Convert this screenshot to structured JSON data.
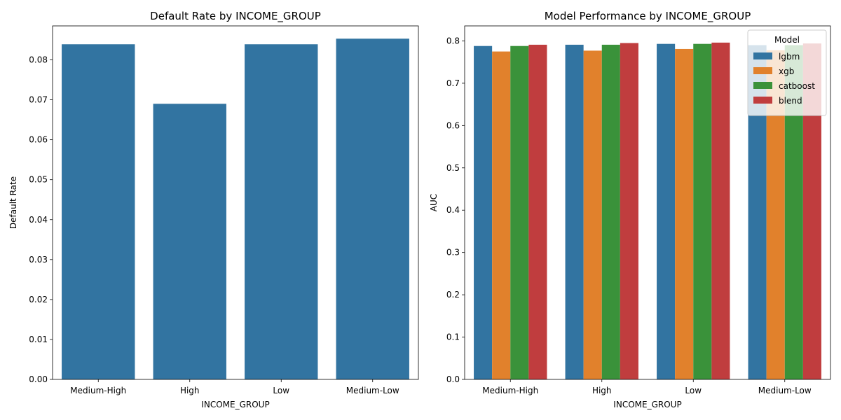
{
  "chart_data": [
    {
      "type": "bar",
      "title": "Default Rate by INCOME_GROUP",
      "xlabel": "INCOME_GROUP",
      "ylabel": "Default Rate",
      "categories": [
        "Medium-High",
        "High",
        "Low",
        "Medium-Low"
      ],
      "values": [
        0.0839,
        0.069,
        0.0839,
        0.0853
      ],
      "ylim": [
        0,
        0.0885
      ],
      "yticks": [
        "0.00",
        "0.01",
        "0.02",
        "0.03",
        "0.04",
        "0.05",
        "0.06",
        "0.07",
        "0.08"
      ],
      "color": "#3274a1",
      "grid": false
    },
    {
      "type": "bar",
      "title": "Model Performance by INCOME_GROUP",
      "xlabel": "INCOME_GROUP",
      "ylabel": "AUC",
      "categories": [
        "Medium-High",
        "High",
        "Low",
        "Medium-Low"
      ],
      "series": [
        {
          "name": "lgbm",
          "color": "#3274a1",
          "values": [
            0.788,
            0.791,
            0.793,
            0.79
          ]
        },
        {
          "name": "xgb",
          "color": "#e1812c",
          "values": [
            0.775,
            0.777,
            0.781,
            0.778
          ]
        },
        {
          "name": "catboost",
          "color": "#3a923a",
          "values": [
            0.788,
            0.791,
            0.793,
            0.79
          ]
        },
        {
          "name": "blend",
          "color": "#c03d3e",
          "values": [
            0.791,
            0.795,
            0.796,
            0.794
          ]
        }
      ],
      "ylim": [
        0,
        0.8355
      ],
      "yticks": [
        "0.0",
        "0.1",
        "0.2",
        "0.3",
        "0.4",
        "0.5",
        "0.6",
        "0.7",
        "0.8"
      ],
      "legend": {
        "title": "Model",
        "placement": "top-right"
      },
      "grid": false
    }
  ]
}
